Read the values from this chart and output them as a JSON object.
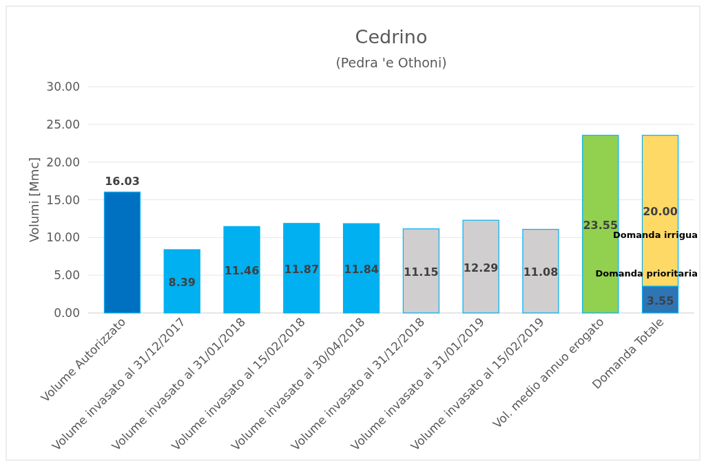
{
  "chart_data": {
    "type": "bar",
    "title": "Cedrino",
    "subtitle": "(Pedra 'e Othoni)",
    "ylabel": "Volumi [Mmc]",
    "stacked": true,
    "grid": "y",
    "categories": [
      "Volume Autorizzato",
      "Volume invasato al 31/12/2017",
      "Volume invasato al 31/01/2018",
      "Volume invasato al 15/02/2018",
      "Volume invasato al 30/04/2018",
      "Volume invasato al 31/12/2018",
      "Volume invasato al 31/01/2019",
      "Volume invasato al 15/02/2019",
      "Vol. medio annuo erogato",
      "Domanda Totale"
    ],
    "ylim": [
      0,
      30
    ],
    "yticks": [
      {
        "value": 0,
        "label": "0.00"
      },
      {
        "value": 5,
        "label": "5.00"
      },
      {
        "value": 10,
        "label": "10.00"
      },
      {
        "value": 15,
        "label": "15.00"
      },
      {
        "value": 20,
        "label": "20.00"
      },
      {
        "value": 25,
        "label": "25.00"
      },
      {
        "value": 30,
        "label": "30.00"
      }
    ],
    "series": [
      {
        "colors": [
          "#0070c0",
          "#00b0f0",
          "#00b0f0",
          "#00b0f0",
          "#00b0f0",
          "#d0cece",
          "#d0cece",
          "#d0cece",
          "#92d050",
          null
        ],
        "values": [
          16.03,
          8.39,
          11.46,
          11.87,
          11.84,
          11.15,
          12.29,
          11.08,
          23.55,
          null
        ],
        "value_labels": [
          "16.03",
          "8.39",
          "11.46",
          "11.87",
          "11.84",
          "11.15",
          "12.29",
          "11.08",
          "23.55",
          null
        ]
      },
      {
        "name": "Domanda prioritaria",
        "color": "#2e75b6",
        "values": [
          null,
          null,
          null,
          null,
          null,
          null,
          null,
          null,
          null,
          3.55
        ],
        "value_labels": [
          null,
          null,
          null,
          null,
          null,
          null,
          null,
          null,
          null,
          "3.55"
        ]
      },
      {
        "name": "Domanda irrigua",
        "color": "#ffd966",
        "values": [
          null,
          null,
          null,
          null,
          null,
          null,
          null,
          null,
          null,
          20.0
        ],
        "value_labels": [
          null,
          null,
          null,
          null,
          null,
          null,
          null,
          null,
          null,
          "20.00"
        ]
      }
    ]
  }
}
